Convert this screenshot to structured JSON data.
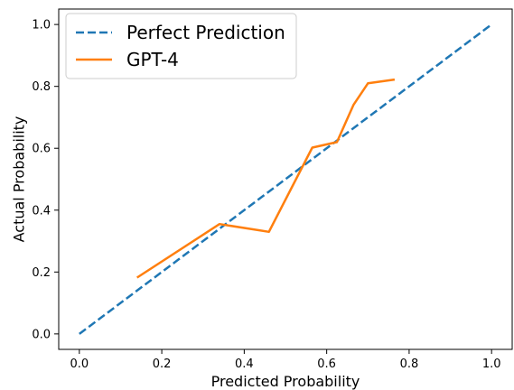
{
  "chart_data": {
    "type": "line",
    "xlabel": "Predicted Probability",
    "ylabel": "Actual Probability",
    "xlim": [
      -0.05,
      1.05
    ],
    "ylim": [
      -0.05,
      1.05
    ],
    "xticks": [
      "0.0",
      "0.2",
      "0.4",
      "0.6",
      "0.8",
      "1.0"
    ],
    "yticks": [
      "0.0",
      "0.2",
      "0.4",
      "0.6",
      "0.8",
      "1.0"
    ],
    "grid": false,
    "legend_position": "top-left",
    "series": [
      {
        "name": "Perfect Prediction",
        "style": "dashed",
        "color": "#1f77b4",
        "x": [
          0.0,
          1.0
        ],
        "y": [
          0.0,
          1.0
        ]
      },
      {
        "name": "GPT-4",
        "style": "solid",
        "color": "#ff7f0e",
        "x": [
          0.14,
          0.34,
          0.46,
          0.565,
          0.625,
          0.665,
          0.7,
          0.765
        ],
        "y": [
          0.182,
          0.355,
          0.33,
          0.602,
          0.62,
          0.74,
          0.81,
          0.822
        ]
      }
    ]
  }
}
